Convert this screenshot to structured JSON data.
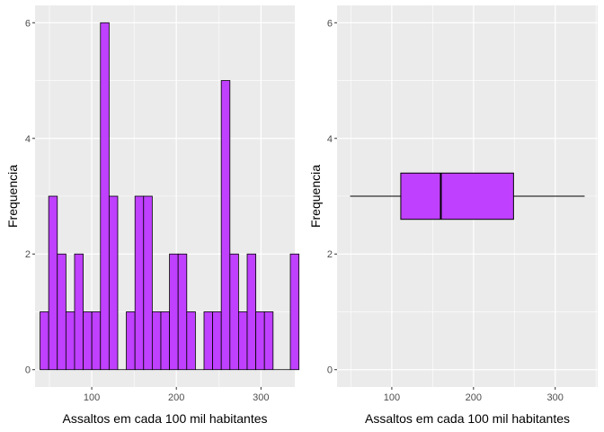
{
  "chart_data": [
    {
      "type": "bar",
      "subtype": "histogram",
      "xlabel": "Assaltos em cada 100 mil habitantes",
      "ylabel": "Frequencia",
      "xlim": [
        33,
        340
      ],
      "ylim": [
        -0.3,
        6.3
      ],
      "xticks": [
        100,
        200,
        300
      ],
      "yticks": [
        0,
        2,
        4,
        6
      ],
      "bin_width": 10.2,
      "bin_start": 38.9,
      "counts": [
        1,
        3,
        2,
        1,
        2,
        1,
        1,
        6,
        3,
        0,
        1,
        3,
        3,
        1,
        1,
        2,
        2,
        1,
        0,
        1,
        1,
        5,
        2,
        1,
        2,
        1,
        1,
        0,
        0,
        2
      ],
      "grid": true,
      "bar_fill": "#BF40FF",
      "bar_stroke": "#000000",
      "panel_bg": "#EBEBEB",
      "grid_color": "#FFFFFF"
    },
    {
      "type": "boxplot",
      "orientation": "horizontal",
      "xlabel": "Assaltos em cada 100 mil habitantes",
      "ylabel": "Frequencia",
      "xlim": [
        33,
        352
      ],
      "ylim": [
        -0.3,
        6.3
      ],
      "xticks": [
        100,
        200,
        300
      ],
      "yticks": [
        0,
        2,
        4,
        6
      ],
      "whisker_low": 49,
      "q1": 111,
      "median": 160,
      "q3": 249,
      "whisker_high": 336,
      "box_y_range": [
        2.6,
        3.4
      ],
      "grid": true,
      "box_fill": "#BF40FF",
      "box_stroke": "#000000",
      "panel_bg": "#EBEBEB",
      "grid_color": "#FFFFFF"
    }
  ]
}
